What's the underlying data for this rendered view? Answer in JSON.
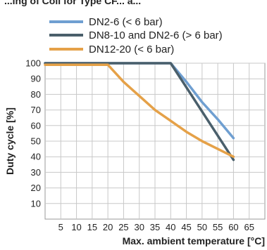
{
  "chart_data": {
    "type": "line",
    "title_partial": "...ing of Coil for Type CF... a...",
    "xlabel": "Max. ambient temperature [°C]",
    "ylabel": "Duty cycle [%]",
    "xlim": [
      0,
      70
    ],
    "ylim": [
      0,
      100
    ],
    "xticks": [
      5,
      10,
      15,
      20,
      25,
      30,
      35,
      40,
      45,
      50,
      55,
      60,
      65
    ],
    "yticks": [
      10,
      20,
      30,
      40,
      50,
      60,
      70,
      80,
      90,
      100
    ],
    "grid": true,
    "legend_position": "top",
    "series": [
      {
        "name": "DN2-6 (< 6 bar)",
        "color": "#6f9fd1",
        "x": [
          0,
          40,
          45,
          50,
          55,
          60
        ],
        "y": [
          100,
          100,
          88,
          75,
          64,
          52
        ]
      },
      {
        "name": "DN8-10 and DN2-6 (> 6 bar)",
        "color": "#4a5f6b",
        "x": [
          0,
          40,
          60
        ],
        "y": [
          100,
          100,
          38
        ]
      },
      {
        "name": "DN12-20 (< 6 bar)",
        "color": "#e5a148",
        "x": [
          0,
          20,
          25,
          30,
          35,
          40,
          45,
          50,
          55,
          60
        ],
        "y": [
          99,
          99,
          88,
          79,
          70,
          63,
          56,
          50,
          45,
          40
        ]
      }
    ]
  }
}
